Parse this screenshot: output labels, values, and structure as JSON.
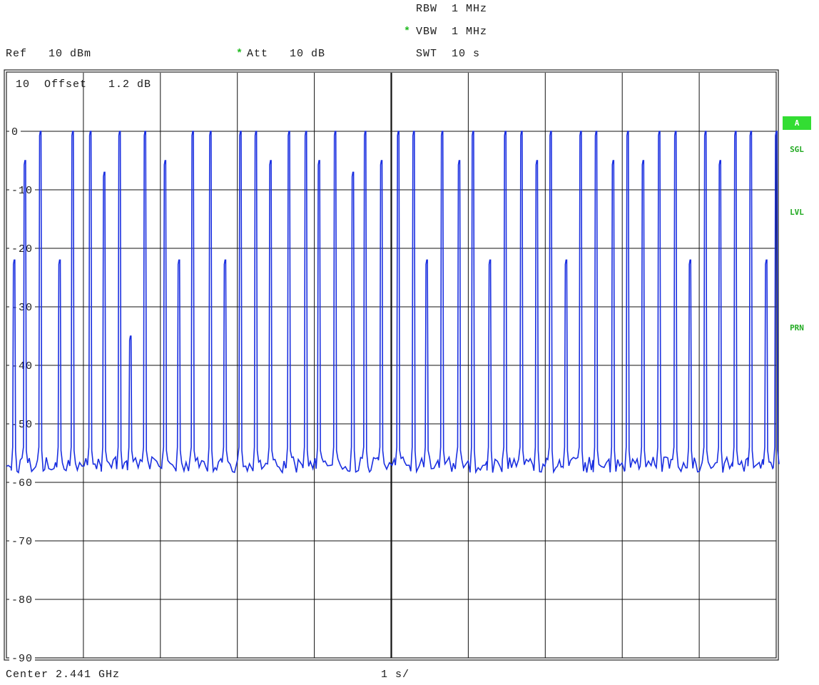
{
  "header": {
    "rbw": "RBW  1 MHz",
    "vbw": "VBW  1 MHz",
    "swt": "SWT  10 s",
    "ref": "Ref   10 dBm",
    "att": "Att   10 dB",
    "star": "*"
  },
  "trace_label": "10  Offset   1.2 dB",
  "footer": {
    "center": "Center 2.441 GHz",
    "span": "1 s/"
  },
  "side_tags": {
    "a": "A",
    "sgl": "SGL",
    "lvl": "LVL",
    "prn": "PRN"
  },
  "colors": {
    "trace": "#1a2fe0",
    "grid": "#111111",
    "tag": "#22aa22",
    "badge_bg": "#33dd33"
  },
  "chart_data": {
    "type": "line",
    "ylim": [
      -90,
      10
    ],
    "xlim": [
      0,
      10
    ],
    "y_ticks": [
      "0",
      "-10",
      "-20",
      "-30",
      "-40",
      "-50",
      "-60",
      "-70",
      "-80",
      "-90"
    ],
    "grid": true,
    "series": [
      {
        "style": "pulse train, noise floor about -57 dB, peaks at about 0 dB",
        "noise_floor_db": -57,
        "peak_db": 0,
        "peaks": [
          {
            "t": 0.1,
            "h": -22
          },
          {
            "t": 0.24,
            "h": -5
          },
          {
            "t": 0.44,
            "h": 0
          },
          {
            "t": 0.69,
            "h": -22
          },
          {
            "t": 0.86,
            "h": 0
          },
          {
            "t": 1.09,
            "h": 0
          },
          {
            "t": 1.27,
            "h": -7
          },
          {
            "t": 1.47,
            "h": 0
          },
          {
            "t": 1.61,
            "h": -35
          },
          {
            "t": 1.8,
            "h": 0
          },
          {
            "t": 2.06,
            "h": -5
          },
          {
            "t": 2.24,
            "h": -22
          },
          {
            "t": 2.42,
            "h": 0
          },
          {
            "t": 2.65,
            "h": 0
          },
          {
            "t": 2.84,
            "h": -22
          },
          {
            "t": 3.04,
            "h": 0
          },
          {
            "t": 3.24,
            "h": 0
          },
          {
            "t": 3.43,
            "h": -5
          },
          {
            "t": 3.67,
            "h": 0
          },
          {
            "t": 3.89,
            "h": 0
          },
          {
            "t": 4.06,
            "h": -5
          },
          {
            "t": 4.27,
            "h": 0
          },
          {
            "t": 4.5,
            "h": -7
          },
          {
            "t": 4.66,
            "h": 0
          },
          {
            "t": 4.87,
            "h": -5
          },
          {
            "t": 5.09,
            "h": 0
          },
          {
            "t": 5.29,
            "h": 0
          },
          {
            "t": 5.46,
            "h": -22
          },
          {
            "t": 5.66,
            "h": 0
          },
          {
            "t": 5.88,
            "h": -5
          },
          {
            "t": 6.06,
            "h": 0
          },
          {
            "t": 6.28,
            "h": -22
          },
          {
            "t": 6.48,
            "h": 0
          },
          {
            "t": 6.69,
            "h": 0
          },
          {
            "t": 6.89,
            "h": -5
          },
          {
            "t": 7.07,
            "h": 0
          },
          {
            "t": 7.27,
            "h": -22
          },
          {
            "t": 7.46,
            "h": 0
          },
          {
            "t": 7.66,
            "h": 0
          },
          {
            "t": 7.88,
            "h": -5
          },
          {
            "t": 8.07,
            "h": 0
          },
          {
            "t": 8.27,
            "h": -5
          },
          {
            "t": 8.48,
            "h": 0
          },
          {
            "t": 8.69,
            "h": 0
          },
          {
            "t": 8.88,
            "h": -22
          },
          {
            "t": 9.08,
            "h": 0
          },
          {
            "t": 9.27,
            "h": -5
          },
          {
            "t": 9.47,
            "h": 0
          },
          {
            "t": 9.67,
            "h": 0
          },
          {
            "t": 9.87,
            "h": -22
          },
          {
            "t": 10.0,
            "h": 0
          }
        ]
      }
    ]
  }
}
